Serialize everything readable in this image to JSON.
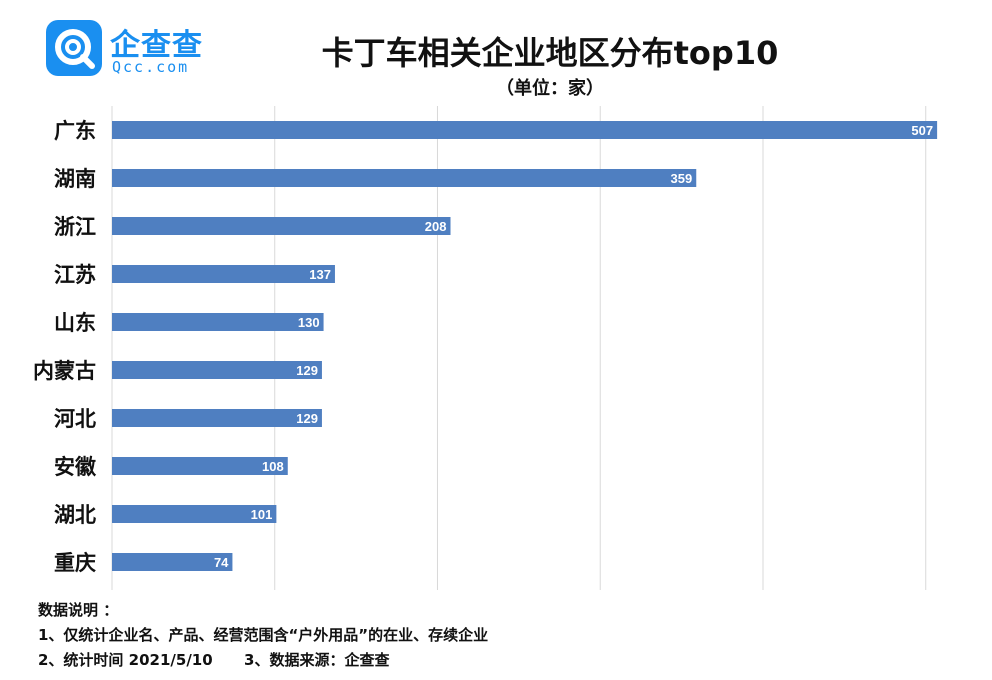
{
  "logo": {
    "name": "企查查",
    "url": "Qcc.com",
    "icon": "magnifier-q-icon",
    "color": "#1a8ff0"
  },
  "header": {
    "title": "卡丁车相关企业地区分布top10",
    "subtitle": "（单位：家）"
  },
  "chart_data": {
    "type": "bar",
    "orientation": "horizontal",
    "title": "卡丁车相关企业地区分布top10",
    "unit": "（单位：家）",
    "categories": [
      "广东",
      "湖南",
      "浙江",
      "江苏",
      "山东",
      "内蒙古",
      "河北",
      "安徽",
      "湖北",
      "重庆"
    ],
    "values": [
      507,
      359,
      208,
      137,
      130,
      129,
      129,
      108,
      101,
      74
    ],
    "xlim": [
      0,
      510
    ],
    "grid": true,
    "bar_color": "#4f7fc1"
  },
  "notes": {
    "heading": "数据说明 ：",
    "line1": "1、仅统计企业名、产品、经营范围含“户外用品”的在业、存续企业",
    "line2": "2、统计时间 2021/5/10      3、数据来源：企查查"
  }
}
